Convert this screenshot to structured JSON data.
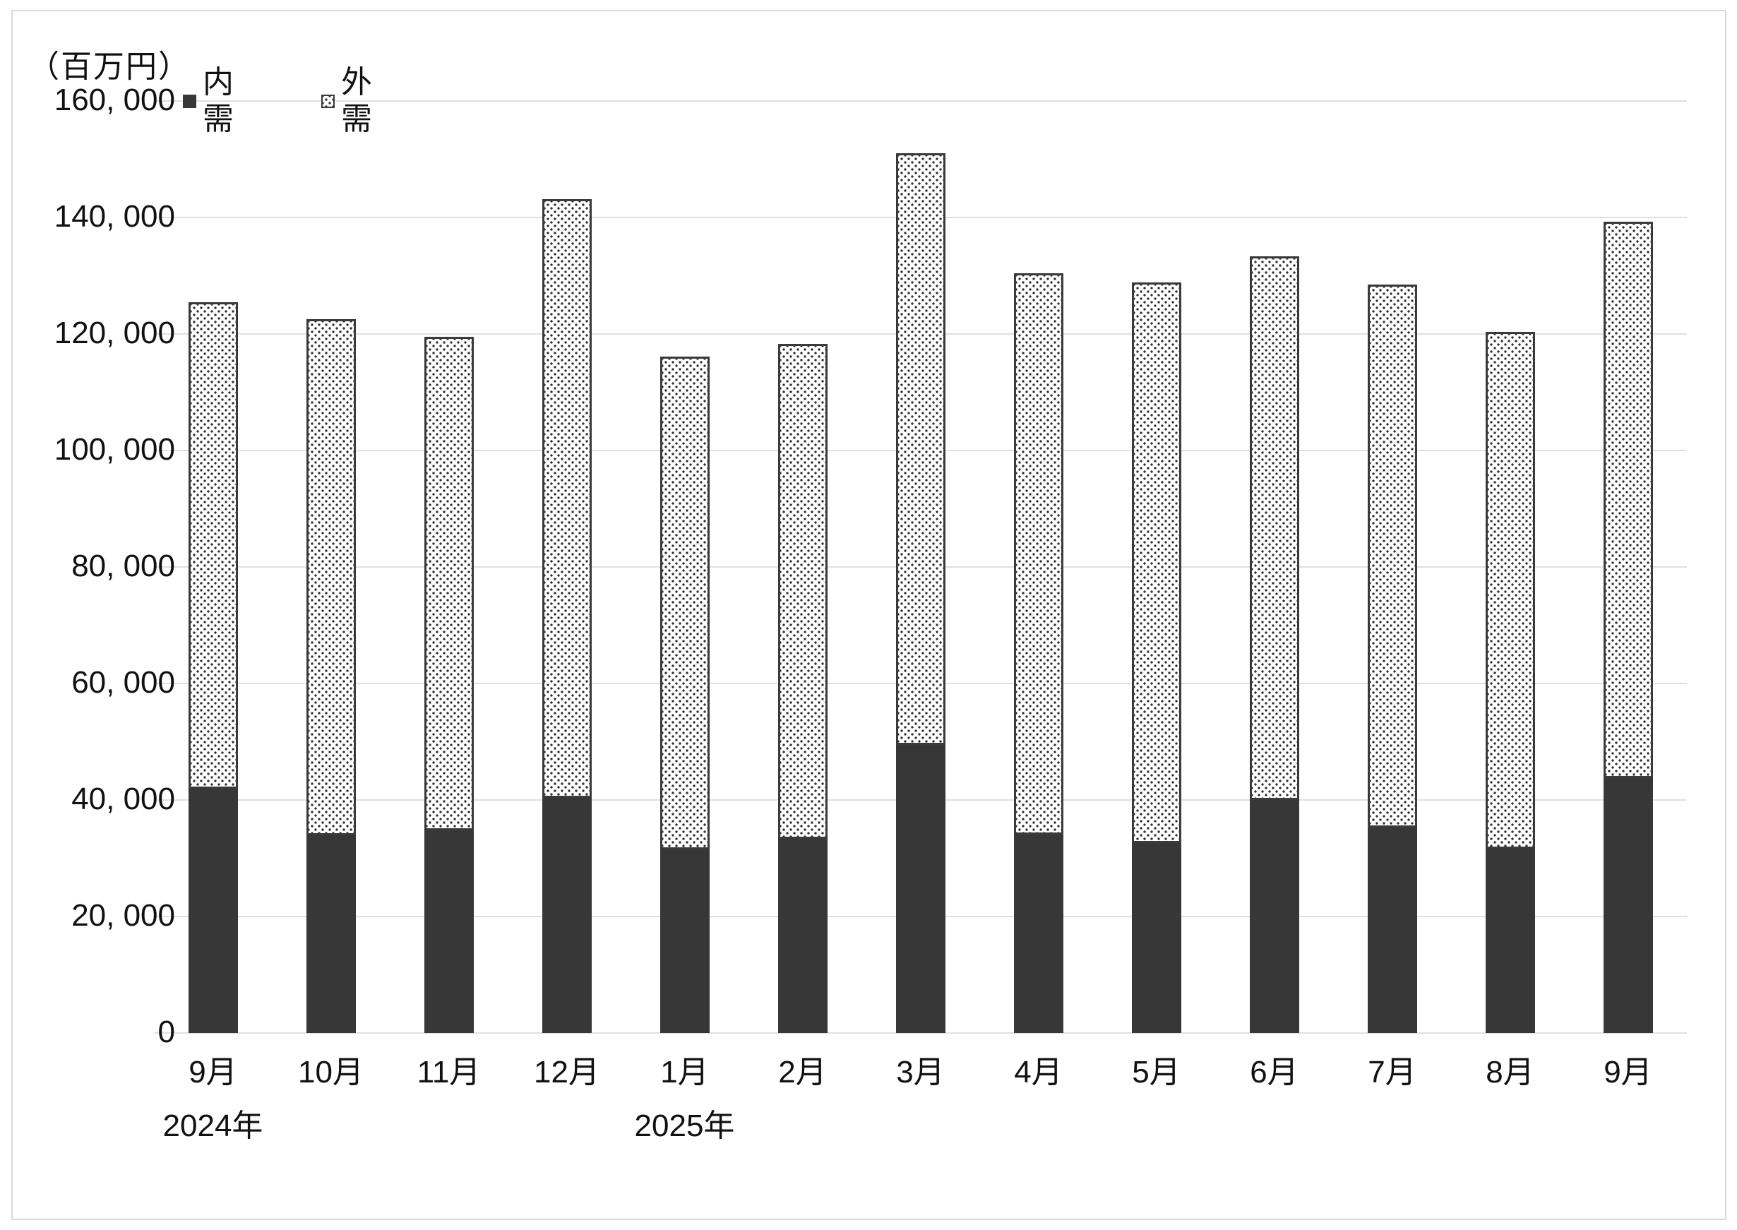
{
  "chart_data": {
    "type": "bar",
    "stacked": true,
    "title": "",
    "unit_label": "（百万円）",
    "xlabel": "",
    "ylabel": "百万円",
    "ylim": [
      0,
      160000
    ],
    "ytick_step": 20000,
    "grid": true,
    "legend_position": "top-left",
    "yticks": [
      {
        "value": 160000,
        "label": "160, 000"
      },
      {
        "value": 140000,
        "label": "140, 000"
      },
      {
        "value": 120000,
        "label": "120, 000"
      },
      {
        "value": 100000,
        "label": "100, 000"
      },
      {
        "value": 80000,
        "label": "80, 000"
      },
      {
        "value": 60000,
        "label": "60, 000"
      },
      {
        "value": 40000,
        "label": "40, 000"
      },
      {
        "value": 20000,
        "label": "20, 000"
      },
      {
        "value": 0,
        "label": "0"
      }
    ],
    "categories": [
      {
        "label": "9月",
        "year": "2024年"
      },
      {
        "label": "10月"
      },
      {
        "label": "11月"
      },
      {
        "label": "12月"
      },
      {
        "label": "1月",
        "year": "2025年"
      },
      {
        "label": "2月"
      },
      {
        "label": "3月"
      },
      {
        "label": "4月"
      },
      {
        "label": "5月"
      },
      {
        "label": "6月"
      },
      {
        "label": "7月"
      },
      {
        "label": "8月"
      },
      {
        "label": "9月"
      }
    ],
    "series": [
      {
        "name": "内需",
        "style": "solid",
        "values": [
          41900,
          33900,
          34800,
          40400,
          31500,
          33300,
          49400,
          34100,
          32600,
          40000,
          35300,
          31600,
          43800
        ]
      },
      {
        "name": "外需",
        "style": "dotted",
        "values": [
          83500,
          88700,
          84700,
          102800,
          84600,
          85000,
          101600,
          96300,
          96200,
          93300,
          93200,
          88800,
          95500
        ]
      }
    ],
    "totals": [
      125400,
      122600,
      119500,
      143200,
      116100,
      118300,
      151000,
      130400,
      128800,
      133300,
      128500,
      120400,
      139300
    ]
  },
  "colors": {
    "bar_solid": "#373737",
    "pattern_dot": "#2f2f2f",
    "pattern_bg": "#ffffff",
    "pattern_border": "#3a3a3a",
    "gridline": "#e0e0e0",
    "frame_border": "#d9d9d9",
    "text": "#111111"
  }
}
